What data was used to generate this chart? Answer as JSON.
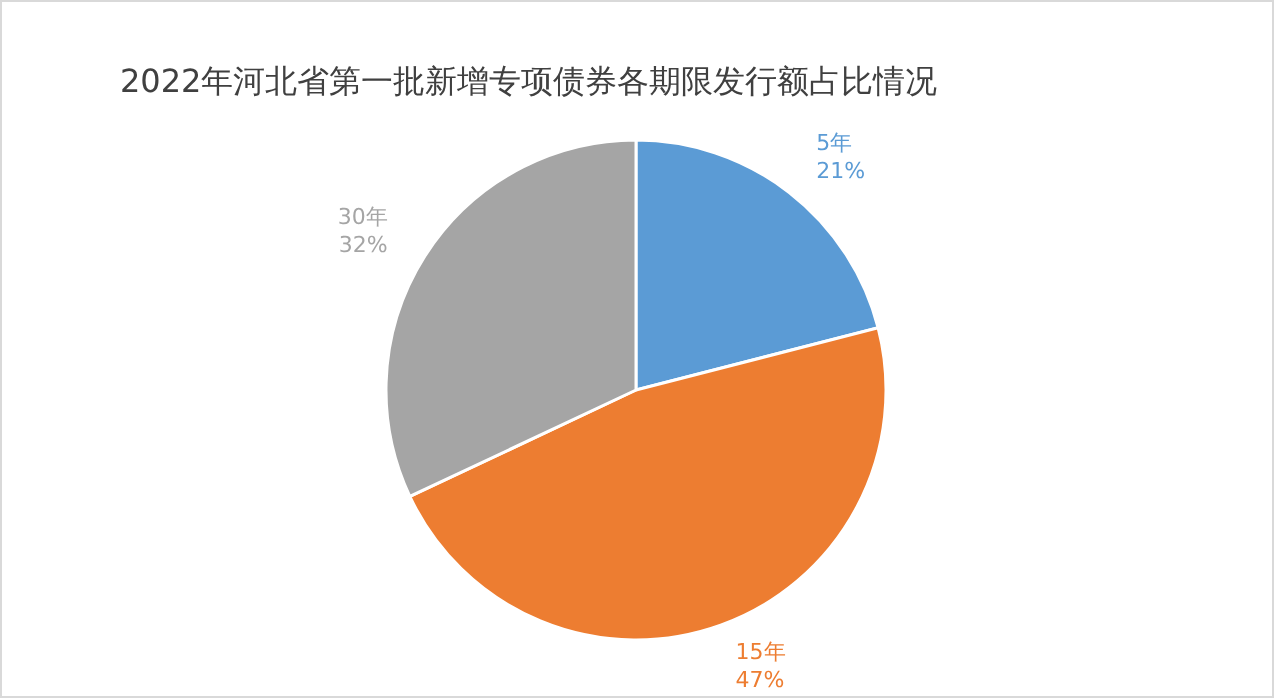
{
  "chart_data": {
    "type": "pie",
    "title": "2022年河北省第一批新增专项债券各期限发行额占比情况",
    "categories": [
      "5年",
      "15年",
      "30年"
    ],
    "values": [
      21,
      47,
      32
    ],
    "value_labels": [
      "21%",
      "47%",
      "32%"
    ],
    "colors": [
      "#5b9bd5",
      "#ed7d31",
      "#a5a5a5"
    ]
  }
}
